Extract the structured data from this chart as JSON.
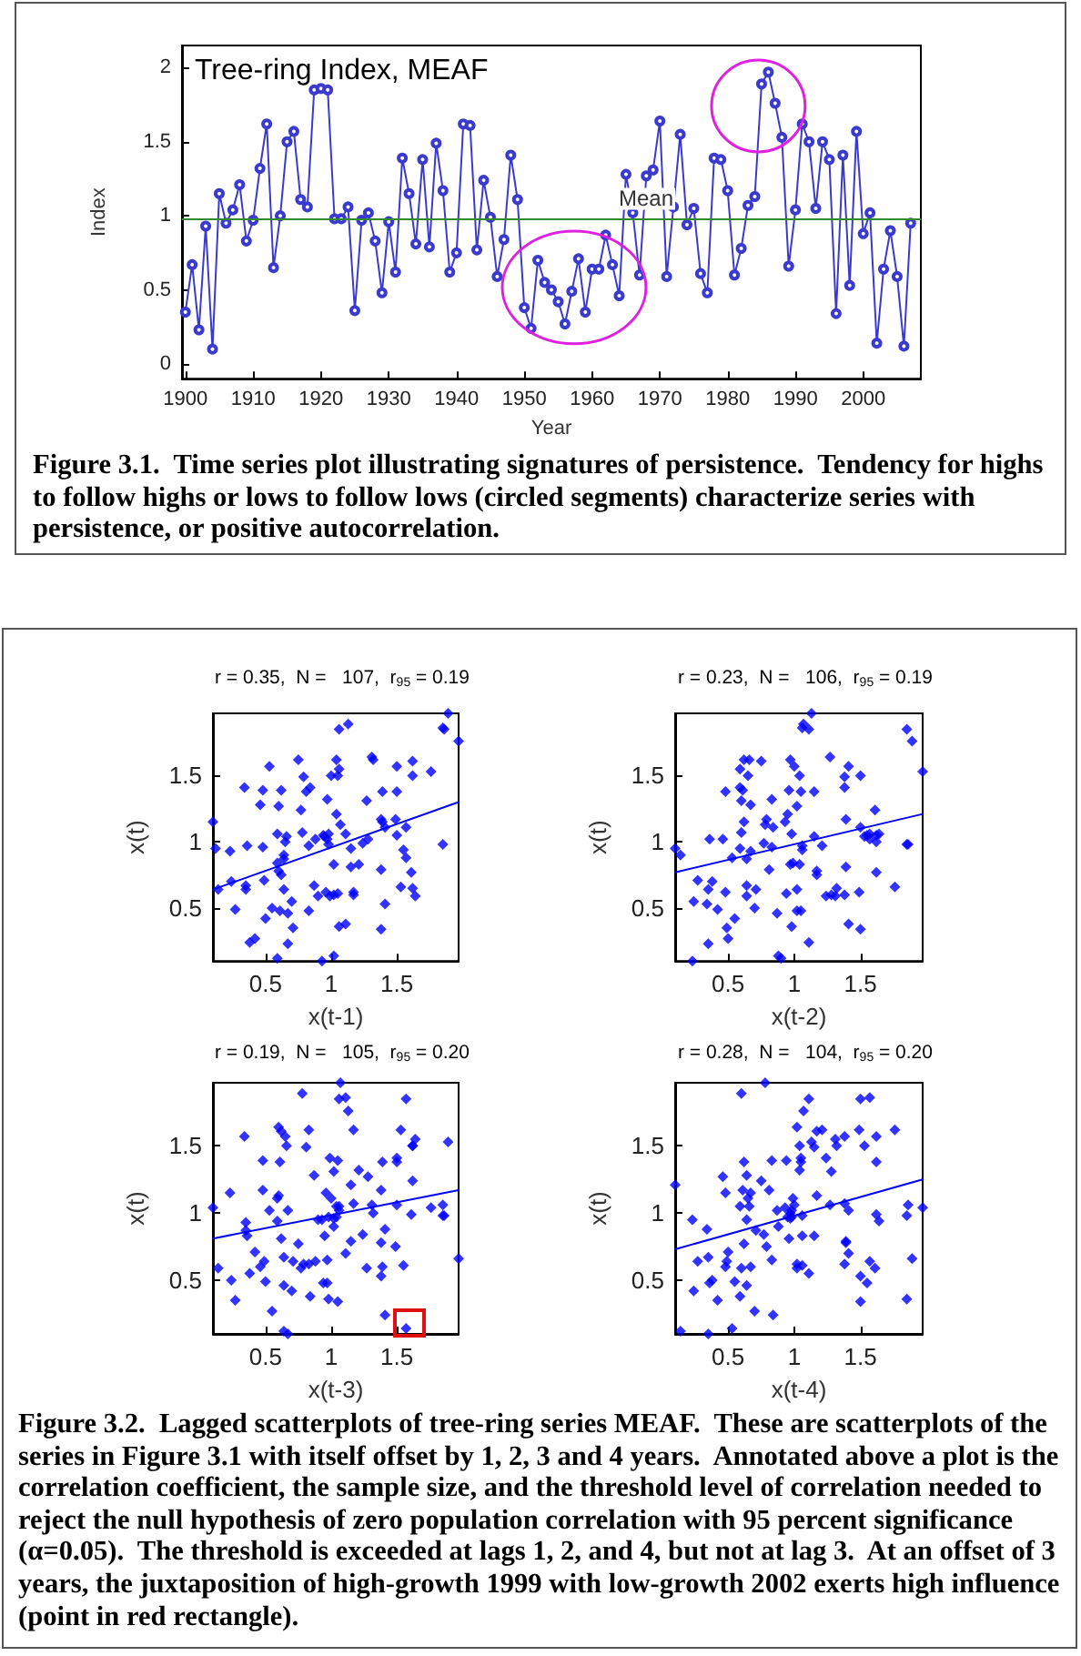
{
  "chart_data": [
    {
      "type": "line",
      "title": "Tree-ring Index, MEAF",
      "xlabel": "Year",
      "ylabel": "Index",
      "color": "#3a3ad0",
      "marker": "circle",
      "grid": false,
      "legend": false,
      "x": [
        1900,
        1901,
        1902,
        1903,
        1904,
        1905,
        1906,
        1907,
        1908,
        1909,
        1910,
        1911,
        1912,
        1913,
        1914,
        1915,
        1916,
        1917,
        1918,
        1919,
        1920,
        1921,
        1922,
        1923,
        1924,
        1925,
        1926,
        1927,
        1928,
        1929,
        1930,
        1931,
        1932,
        1933,
        1934,
        1935,
        1936,
        1937,
        1938,
        1939,
        1940,
        1941,
        1942,
        1943,
        1944,
        1945,
        1946,
        1947,
        1948,
        1949,
        1950,
        1951,
        1952,
        1953,
        1954,
        1955,
        1956,
        1957,
        1958,
        1959,
        1960,
        1961,
        1962,
        1963,
        1964,
        1965,
        1966,
        1967,
        1968,
        1969,
        1970,
        1971,
        1972,
        1973,
        1974,
        1975,
        1976,
        1977,
        1978,
        1979,
        1980,
        1981,
        1982,
        1983,
        1984,
        1985,
        1986,
        1987,
        1988,
        1989,
        1990,
        1991,
        1992,
        1993,
        1994,
        1995,
        1996,
        1997,
        1998,
        1999,
        2000,
        2001,
        2002,
        2003,
        2004,
        2005,
        2006,
        2007
      ],
      "values": [
        0.35,
        0.67,
        0.23,
        0.93,
        0.1,
        1.15,
        0.95,
        1.04,
        1.21,
        0.83,
        0.97,
        1.32,
        1.62,
        0.65,
        1.0,
        1.5,
        1.57,
        1.11,
        1.06,
        1.85,
        1.86,
        1.85,
        0.98,
        0.98,
        1.06,
        0.36,
        0.97,
        1.02,
        0.83,
        0.48,
        0.96,
        0.62,
        1.39,
        1.15,
        0.81,
        1.38,
        0.79,
        1.49,
        1.17,
        0.62,
        0.75,
        1.62,
        1.61,
        0.77,
        1.24,
        0.99,
        0.59,
        0.84,
        1.41,
        1.11,
        0.38,
        0.24,
        0.7,
        0.55,
        0.5,
        0.42,
        0.27,
        0.49,
        0.71,
        0.35,
        0.64,
        0.64,
        0.87,
        0.67,
        0.46,
        1.28,
        1.02,
        0.6,
        1.27,
        1.31,
        1.64,
        0.59,
        1.06,
        1.55,
        0.94,
        1.05,
        0.61,
        0.48,
        1.39,
        1.38,
        1.17,
        0.6,
        0.78,
        1.07,
        1.13,
        1.89,
        1.97,
        1.76,
        1.53,
        0.66,
        1.04,
        1.62,
        1.5,
        1.05,
        1.5,
        1.38,
        0.34,
        1.41,
        0.53,
        1.57,
        0.88,
        1.02,
        0.14,
        0.64,
        0.9,
        0.59,
        0.12,
        0.95
      ],
      "xlim": [
        1899.5,
        2008.5
      ],
      "xticks": [
        1900,
        1910,
        1920,
        1930,
        1940,
        1950,
        1960,
        1970,
        1980,
        1990,
        2000
      ],
      "ylim": [
        -0.1,
        2.15
      ],
      "yticks": [
        0,
        0.5,
        1,
        1.5,
        2
      ],
      "ref_lines": [
        {
          "axis": "y",
          "value": 0.98,
          "label": "Mean",
          "color": "#2e8b2e"
        }
      ],
      "annotations": [
        "Figure 3.1.  Time series plot illustrating signatures of persistence.  Tendency for highs to follow highs or lows to follow lows (circled segments) characterize series with persistence, or positive autocorrelation."
      ]
    },
    {
      "type": "scatter",
      "title": "r = 0.35,  N =   107,  r$_{95}$ = 0.19",
      "xlabel": "x(t-1)",
      "ylabel": "x(t)",
      "marker": "diamond",
      "grid": false,
      "legend": false,
      "xlim": [
        0.1,
        1.97
      ],
      "xticks": [
        0.5,
        1,
        1.5
      ],
      "ylim": [
        0.1,
        1.97
      ],
      "yticks": [
        0.5,
        1,
        1.5
      ],
      "series": [
        {
          "color": "#0000ff",
          "x": [
            0.35,
            0.67,
            0.23,
            0.93,
            0.1,
            1.15,
            0.95,
            1.04,
            1.21,
            0.83,
            0.97,
            1.32,
            1.62,
            0.65,
            1.0,
            1.5,
            1.57,
            1.11,
            1.06,
            1.85,
            1.86,
            1.85,
            0.98,
            0.98,
            1.06,
            0.36,
            0.97,
            1.02,
            0.83,
            0.48,
            0.96,
            0.62,
            1.39,
            1.15,
            0.81,
            1.38,
            0.79,
            1.49,
            1.17,
            0.62,
            0.75,
            1.62,
            1.61,
            0.77,
            1.24,
            0.99,
            0.59,
            0.84,
            1.41,
            1.11,
            0.38,
            0.24,
            0.7,
            0.55,
            0.5,
            0.42,
            0.27,
            0.49,
            0.71,
            0.35,
            0.64,
            0.64,
            0.87,
            0.67,
            0.46,
            1.28,
            1.02,
            0.6,
            1.27,
            1.31,
            1.64,
            0.59,
            1.06,
            1.55,
            0.94,
            1.05,
            0.61,
            0.48,
            1.39,
            1.38,
            1.17,
            0.6,
            0.78,
            1.07,
            1.13,
            1.89,
            1.97,
            1.76,
            1.53,
            0.66,
            1.04,
            1.62,
            1.5,
            1.05,
            1.5,
            1.38,
            0.34,
            1.41,
            0.53,
            1.57,
            0.88,
            1.02,
            0.14,
            0.64,
            0.9,
            0.59,
            0.12
          ],
          "values": [
            0.67,
            0.23,
            0.93,
            0.1,
            1.15,
            0.95,
            1.04,
            1.21,
            0.83,
            0.97,
            1.32,
            1.62,
            0.65,
            1.0,
            1.5,
            1.57,
            1.11,
            1.06,
            1.85,
            1.86,
            1.85,
            0.98,
            0.98,
            1.06,
            0.36,
            0.97,
            1.02,
            0.83,
            0.48,
            0.96,
            0.62,
            1.39,
            1.15,
            0.81,
            1.38,
            0.79,
            1.49,
            1.17,
            0.62,
            0.75,
            1.62,
            1.61,
            0.77,
            1.24,
            0.99,
            0.59,
            0.84,
            1.41,
            1.11,
            0.38,
            0.24,
            0.7,
            0.55,
            0.5,
            0.42,
            0.27,
            0.49,
            0.71,
            0.35,
            0.64,
            0.64,
            0.87,
            0.67,
            0.46,
            1.28,
            1.02,
            0.6,
            1.27,
            1.31,
            1.64,
            0.59,
            1.06,
            1.55,
            0.94,
            1.05,
            0.61,
            0.48,
            1.39,
            1.38,
            1.17,
            0.6,
            0.78,
            1.07,
            1.13,
            1.89,
            1.97,
            1.76,
            1.53,
            0.66,
            1.04,
            1.62,
            1.5,
            1.05,
            1.5,
            1.38,
            0.34,
            1.41,
            0.53,
            1.57,
            0.88,
            1.02,
            0.14,
            0.64,
            0.9,
            0.59,
            0.12,
            0.95
          ]
        },
        {
          "type": "line",
          "color": "#0000ff",
          "marker": "none",
          "x": [
            0.1,
            1.97
          ],
          "values": [
            0.64,
            1.3
          ]
        }
      ]
    },
    {
      "type": "scatter",
      "title": "r = 0.23,  N =   106,  r$_{95}$ = 0.19",
      "xlabel": "x(t-2)",
      "ylabel": "x(t)",
      "marker": "diamond",
      "grid": false,
      "legend": false,
      "xlim": [
        0.1,
        1.97
      ],
      "xticks": [
        0.5,
        1,
        1.5
      ],
      "ylim": [
        0.1,
        1.97
      ],
      "yticks": [
        0.5,
        1,
        1.5
      ],
      "series": [
        {
          "color": "#0000ff",
          "x": [
            0.35,
            0.67,
            0.23,
            0.93,
            0.1,
            1.15,
            0.95,
            1.04,
            1.21,
            0.83,
            0.97,
            1.32,
            1.62,
            0.65,
            1.0,
            1.5,
            1.57,
            1.11,
            1.06,
            1.85,
            1.86,
            1.85,
            0.98,
            0.98,
            1.06,
            0.36,
            0.97,
            1.02,
            0.83,
            0.48,
            0.96,
            0.62,
            1.39,
            1.15,
            0.81,
            1.38,
            0.79,
            1.49,
            1.17,
            0.62,
            0.75,
            1.62,
            1.61,
            0.77,
            1.24,
            0.99,
            0.59,
            0.84,
            1.41,
            1.11,
            0.38,
            0.24,
            0.7,
            0.55,
            0.5,
            0.42,
            0.27,
            0.49,
            0.71,
            0.35,
            0.64,
            0.64,
            0.87,
            0.67,
            0.46,
            1.28,
            1.02,
            0.6,
            1.27,
            1.31,
            1.64,
            0.59,
            1.06,
            1.55,
            0.94,
            1.05,
            0.61,
            0.48,
            1.39,
            1.38,
            1.17,
            0.6,
            0.78,
            1.07,
            1.13,
            1.89,
            1.97,
            1.76,
            1.53,
            0.66,
            1.04,
            1.62,
            1.5,
            1.05,
            1.5,
            1.38,
            0.34,
            1.41,
            0.53,
            1.57,
            0.88,
            1.02,
            0.14,
            0.64,
            0.9,
            0.59
          ],
          "values": [
            0.23,
            0.93,
            0.1,
            1.15,
            0.95,
            1.04,
            1.21,
            0.83,
            0.97,
            1.32,
            1.62,
            0.65,
            1.0,
            1.5,
            1.57,
            1.11,
            1.06,
            1.85,
            1.86,
            1.85,
            0.98,
            0.98,
            1.06,
            0.36,
            0.97,
            1.02,
            0.83,
            0.48,
            0.96,
            0.62,
            1.39,
            1.15,
            0.81,
            1.38,
            0.79,
            1.49,
            1.17,
            0.62,
            0.75,
            1.62,
            1.61,
            0.77,
            1.24,
            0.99,
            0.59,
            0.84,
            1.41,
            1.11,
            0.38,
            0.24,
            0.7,
            0.55,
            0.5,
            0.42,
            0.27,
            0.49,
            0.71,
            0.35,
            0.64,
            0.64,
            0.87,
            0.67,
            0.46,
            1.28,
            1.02,
            0.6,
            1.27,
            1.31,
            1.64,
            0.59,
            1.06,
            1.55,
            0.94,
            1.05,
            0.61,
            0.48,
            1.39,
            1.38,
            1.17,
            0.6,
            0.78,
            1.07,
            1.13,
            1.89,
            1.97,
            1.76,
            1.53,
            0.66,
            1.04,
            1.62,
            1.5,
            1.05,
            1.5,
            1.38,
            0.34,
            1.41,
            0.53,
            1.57,
            0.88,
            1.02,
            0.14,
            0.64,
            0.9,
            0.59,
            0.12,
            0.95
          ]
        },
        {
          "type": "line",
          "color": "#0000ff",
          "marker": "none",
          "x": [
            0.1,
            1.97
          ],
          "values": [
            0.77,
            1.21
          ]
        }
      ]
    },
    {
      "type": "scatter",
      "title": "r = 0.19,  N =   105,  r$_{95}$ = 0.20",
      "xlabel": "x(t-3)",
      "ylabel": "x(t)",
      "marker": "diamond",
      "grid": false,
      "legend": false,
      "xlim": [
        0.1,
        1.97
      ],
      "xticks": [
        0.5,
        1,
        1.5
      ],
      "ylim": [
        0.1,
        1.97
      ],
      "yticks": [
        0.5,
        1,
        1.5
      ],
      "series": [
        {
          "color": "#0000ff",
          "x": [
            0.35,
            0.67,
            0.23,
            0.93,
            0.1,
            1.15,
            0.95,
            1.04,
            1.21,
            0.83,
            0.97,
            1.32,
            1.62,
            0.65,
            1.0,
            1.5,
            1.57,
            1.11,
            1.06,
            1.85,
            1.86,
            1.85,
            0.98,
            0.98,
            1.06,
            0.36,
            0.97,
            1.02,
            0.83,
            0.48,
            0.96,
            0.62,
            1.39,
            1.15,
            0.81,
            1.38,
            0.79,
            1.49,
            1.17,
            0.62,
            0.75,
            1.62,
            1.61,
            0.77,
            1.24,
            0.99,
            0.59,
            0.84,
            1.41,
            1.11,
            0.38,
            0.24,
            0.7,
            0.55,
            0.5,
            0.42,
            0.27,
            0.49,
            0.71,
            0.35,
            0.64,
            0.64,
            0.87,
            0.67,
            0.46,
            1.28,
            1.02,
            0.6,
            1.27,
            1.31,
            1.64,
            0.59,
            1.06,
            1.55,
            0.94,
            1.05,
            0.61,
            0.48,
            1.39,
            1.38,
            1.17,
            0.6,
            0.78,
            1.07,
            1.13,
            1.89,
            1.97,
            1.76,
            1.53,
            0.66,
            1.04,
            1.62,
            1.5,
            1.05,
            1.5,
            1.38,
            0.34,
            1.41,
            0.53,
            1.57,
            0.88,
            1.02,
            0.14,
            0.64,
            0.9
          ],
          "values": [
            0.93,
            0.1,
            1.15,
            0.95,
            1.04,
            1.21,
            0.83,
            0.97,
            1.32,
            1.62,
            0.65,
            1.0,
            1.5,
            1.57,
            1.11,
            1.06,
            1.85,
            1.86,
            1.85,
            0.98,
            0.98,
            1.06,
            0.36,
            0.97,
            1.02,
            0.83,
            0.48,
            0.96,
            0.62,
            1.39,
            1.15,
            0.81,
            1.38,
            0.79,
            1.49,
            1.17,
            0.62,
            0.75,
            1.62,
            1.61,
            0.77,
            1.24,
            0.99,
            0.59,
            0.84,
            1.41,
            1.11,
            0.38,
            0.24,
            0.7,
            0.55,
            0.5,
            0.42,
            0.27,
            0.49,
            0.71,
            0.35,
            0.64,
            0.64,
            0.87,
            0.67,
            0.46,
            1.28,
            1.02,
            0.6,
            1.27,
            1.31,
            1.64,
            0.59,
            1.06,
            1.55,
            0.94,
            1.05,
            0.61,
            0.48,
            1.39,
            1.38,
            1.17,
            0.6,
            0.78,
            1.07,
            1.13,
            1.89,
            1.97,
            1.76,
            1.53,
            0.66,
            1.04,
            1.62,
            1.5,
            1.05,
            1.5,
            1.38,
            0.34,
            1.41,
            0.53,
            1.57,
            0.88,
            1.02,
            0.14,
            0.64,
            0.9,
            0.59,
            0.12,
            0.95
          ]
        },
        {
          "type": "line",
          "color": "#0000ff",
          "marker": "none",
          "x": [
            0.1,
            1.97
          ],
          "values": [
            0.81,
            1.17
          ]
        }
      ]
    },
    {
      "type": "scatter",
      "title": "r = 0.28,  N =   104,  r$_{95}$ = 0.20",
      "xlabel": "x(t-4)",
      "ylabel": "x(t)",
      "marker": "diamond",
      "grid": false,
      "legend": false,
      "xlim": [
        0.1,
        1.97
      ],
      "xticks": [
        0.5,
        1,
        1.5
      ],
      "ylim": [
        0.1,
        1.97
      ],
      "yticks": [
        0.5,
        1,
        1.5
      ],
      "series": [
        {
          "color": "#0000ff",
          "x": [
            0.35,
            0.67,
            0.23,
            0.93,
            0.1,
            1.15,
            0.95,
            1.04,
            1.21,
            0.83,
            0.97,
            1.32,
            1.62,
            0.65,
            1.0,
            1.5,
            1.57,
            1.11,
            1.06,
            1.85,
            1.86,
            1.85,
            0.98,
            0.98,
            1.06,
            0.36,
            0.97,
            1.02,
            0.83,
            0.48,
            0.96,
            0.62,
            1.39,
            1.15,
            0.81,
            1.38,
            0.79,
            1.49,
            1.17,
            0.62,
            0.75,
            1.62,
            1.61,
            0.77,
            1.24,
            0.99,
            0.59,
            0.84,
            1.41,
            1.11,
            0.38,
            0.24,
            0.7,
            0.55,
            0.5,
            0.42,
            0.27,
            0.49,
            0.71,
            0.35,
            0.64,
            0.64,
            0.87,
            0.67,
            0.46,
            1.28,
            1.02,
            0.6,
            1.27,
            1.31,
            1.64,
            0.59,
            1.06,
            1.55,
            0.94,
            1.05,
            0.61,
            0.48,
            1.39,
            1.38,
            1.17,
            0.6,
            0.78,
            1.07,
            1.13,
            1.89,
            1.97,
            1.76,
            1.53,
            0.66,
            1.04,
            1.62,
            1.5,
            1.05,
            1.5,
            1.38,
            0.34,
            1.41,
            0.53,
            1.57,
            0.88,
            1.02,
            0.14,
            0.64
          ],
          "values": [
            0.1,
            1.15,
            0.95,
            1.04,
            1.21,
            0.83,
            0.97,
            1.32,
            1.62,
            0.65,
            1.0,
            1.5,
            1.57,
            1.11,
            1.06,
            1.85,
            1.86,
            1.85,
            0.98,
            0.98,
            1.06,
            0.36,
            0.97,
            1.02,
            0.83,
            0.48,
            0.96,
            0.62,
            1.39,
            1.15,
            0.81,
            1.38,
            0.79,
            1.49,
            1.17,
            0.62,
            0.75,
            1.62,
            1.61,
            0.77,
            1.24,
            0.99,
            0.59,
            0.84,
            1.41,
            1.11,
            0.38,
            0.24,
            0.7,
            0.55,
            0.5,
            0.42,
            0.27,
            0.49,
            0.71,
            0.35,
            0.64,
            0.64,
            0.87,
            0.67,
            0.46,
            1.28,
            1.02,
            0.6,
            1.27,
            1.31,
            1.64,
            0.59,
            1.06,
            1.55,
            0.94,
            1.05,
            0.61,
            0.48,
            1.39,
            1.38,
            1.17,
            0.6,
            0.78,
            1.07,
            1.13,
            1.89,
            1.97,
            1.76,
            1.53,
            0.66,
            1.04,
            1.62,
            1.5,
            1.05,
            1.5,
            1.38,
            0.34,
            1.41,
            0.53,
            1.57,
            0.88,
            1.02,
            0.14,
            0.64,
            0.9,
            0.59,
            0.12,
            0.95
          ]
        },
        {
          "type": "line",
          "color": "#0000ff",
          "marker": "none",
          "x": [
            0.1,
            1.97
          ],
          "values": [
            0.73,
            1.25
          ]
        }
      ],
      "annotations": [
        "Figure 3.2.  Lagged scatterplots of tree-ring series MEAF.  These are scatterplots of the series in Figure 3.1 with itself offset by 1, 2, 3 and 4 years.  Annotated above a plot is the correlation coefficient, the sample size, and the threshold level of correlation needed to reject the null hypothesis of zero population correlation with 95 percent significance (α=0.05).  The threshold is exceeded at lags 1, 2, and 4, but not at lag 3.  At an offset of 3 years, the juxtaposition of high-growth 1999 with low-growth 2002 exerts high influence (point in red rectangle)."
      ]
    }
  ]
}
